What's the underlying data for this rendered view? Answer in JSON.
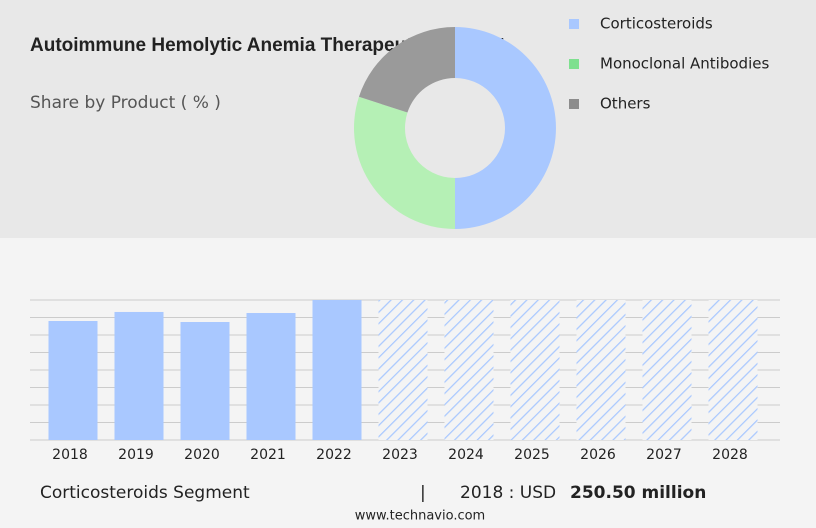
{
  "chart_data": [
    {
      "type": "pie",
      "title": "Autoimmune Hemolytic Anemia Therapeutics Market",
      "subtitle": "Share by Product ( % )",
      "categories": [
        "Corticosteroids",
        "Monoclonal Antibodies",
        "Others"
      ],
      "values": [
        50,
        30,
        20
      ],
      "colors": [
        "#a9c8ff",
        "#b5f0b5",
        "#9a9a9a"
      ],
      "legend_colors": [
        "#a9c8ff",
        "#7ee08f",
        "#8c8c8c"
      ]
    },
    {
      "type": "bar",
      "categories": [
        "2018",
        "2019",
        "2020",
        "2021",
        "2022",
        "2023",
        "2024",
        "2025",
        "2026",
        "2027",
        "2028"
      ],
      "values": [
        250.5,
        269.5,
        248.4,
        267.3,
        294.7,
        null,
        null,
        null,
        null,
        null,
        null
      ],
      "color": "#a9c8ff",
      "forecast_color": "#a9c8ff",
      "ylim": [
        0,
        294.7
      ]
    }
  ],
  "footer": {
    "segment": "Corticosteroids Segment",
    "separator": "|",
    "year_label": "2018 : USD",
    "value_label": "250.50 million",
    "source": "www.technavio.com"
  }
}
